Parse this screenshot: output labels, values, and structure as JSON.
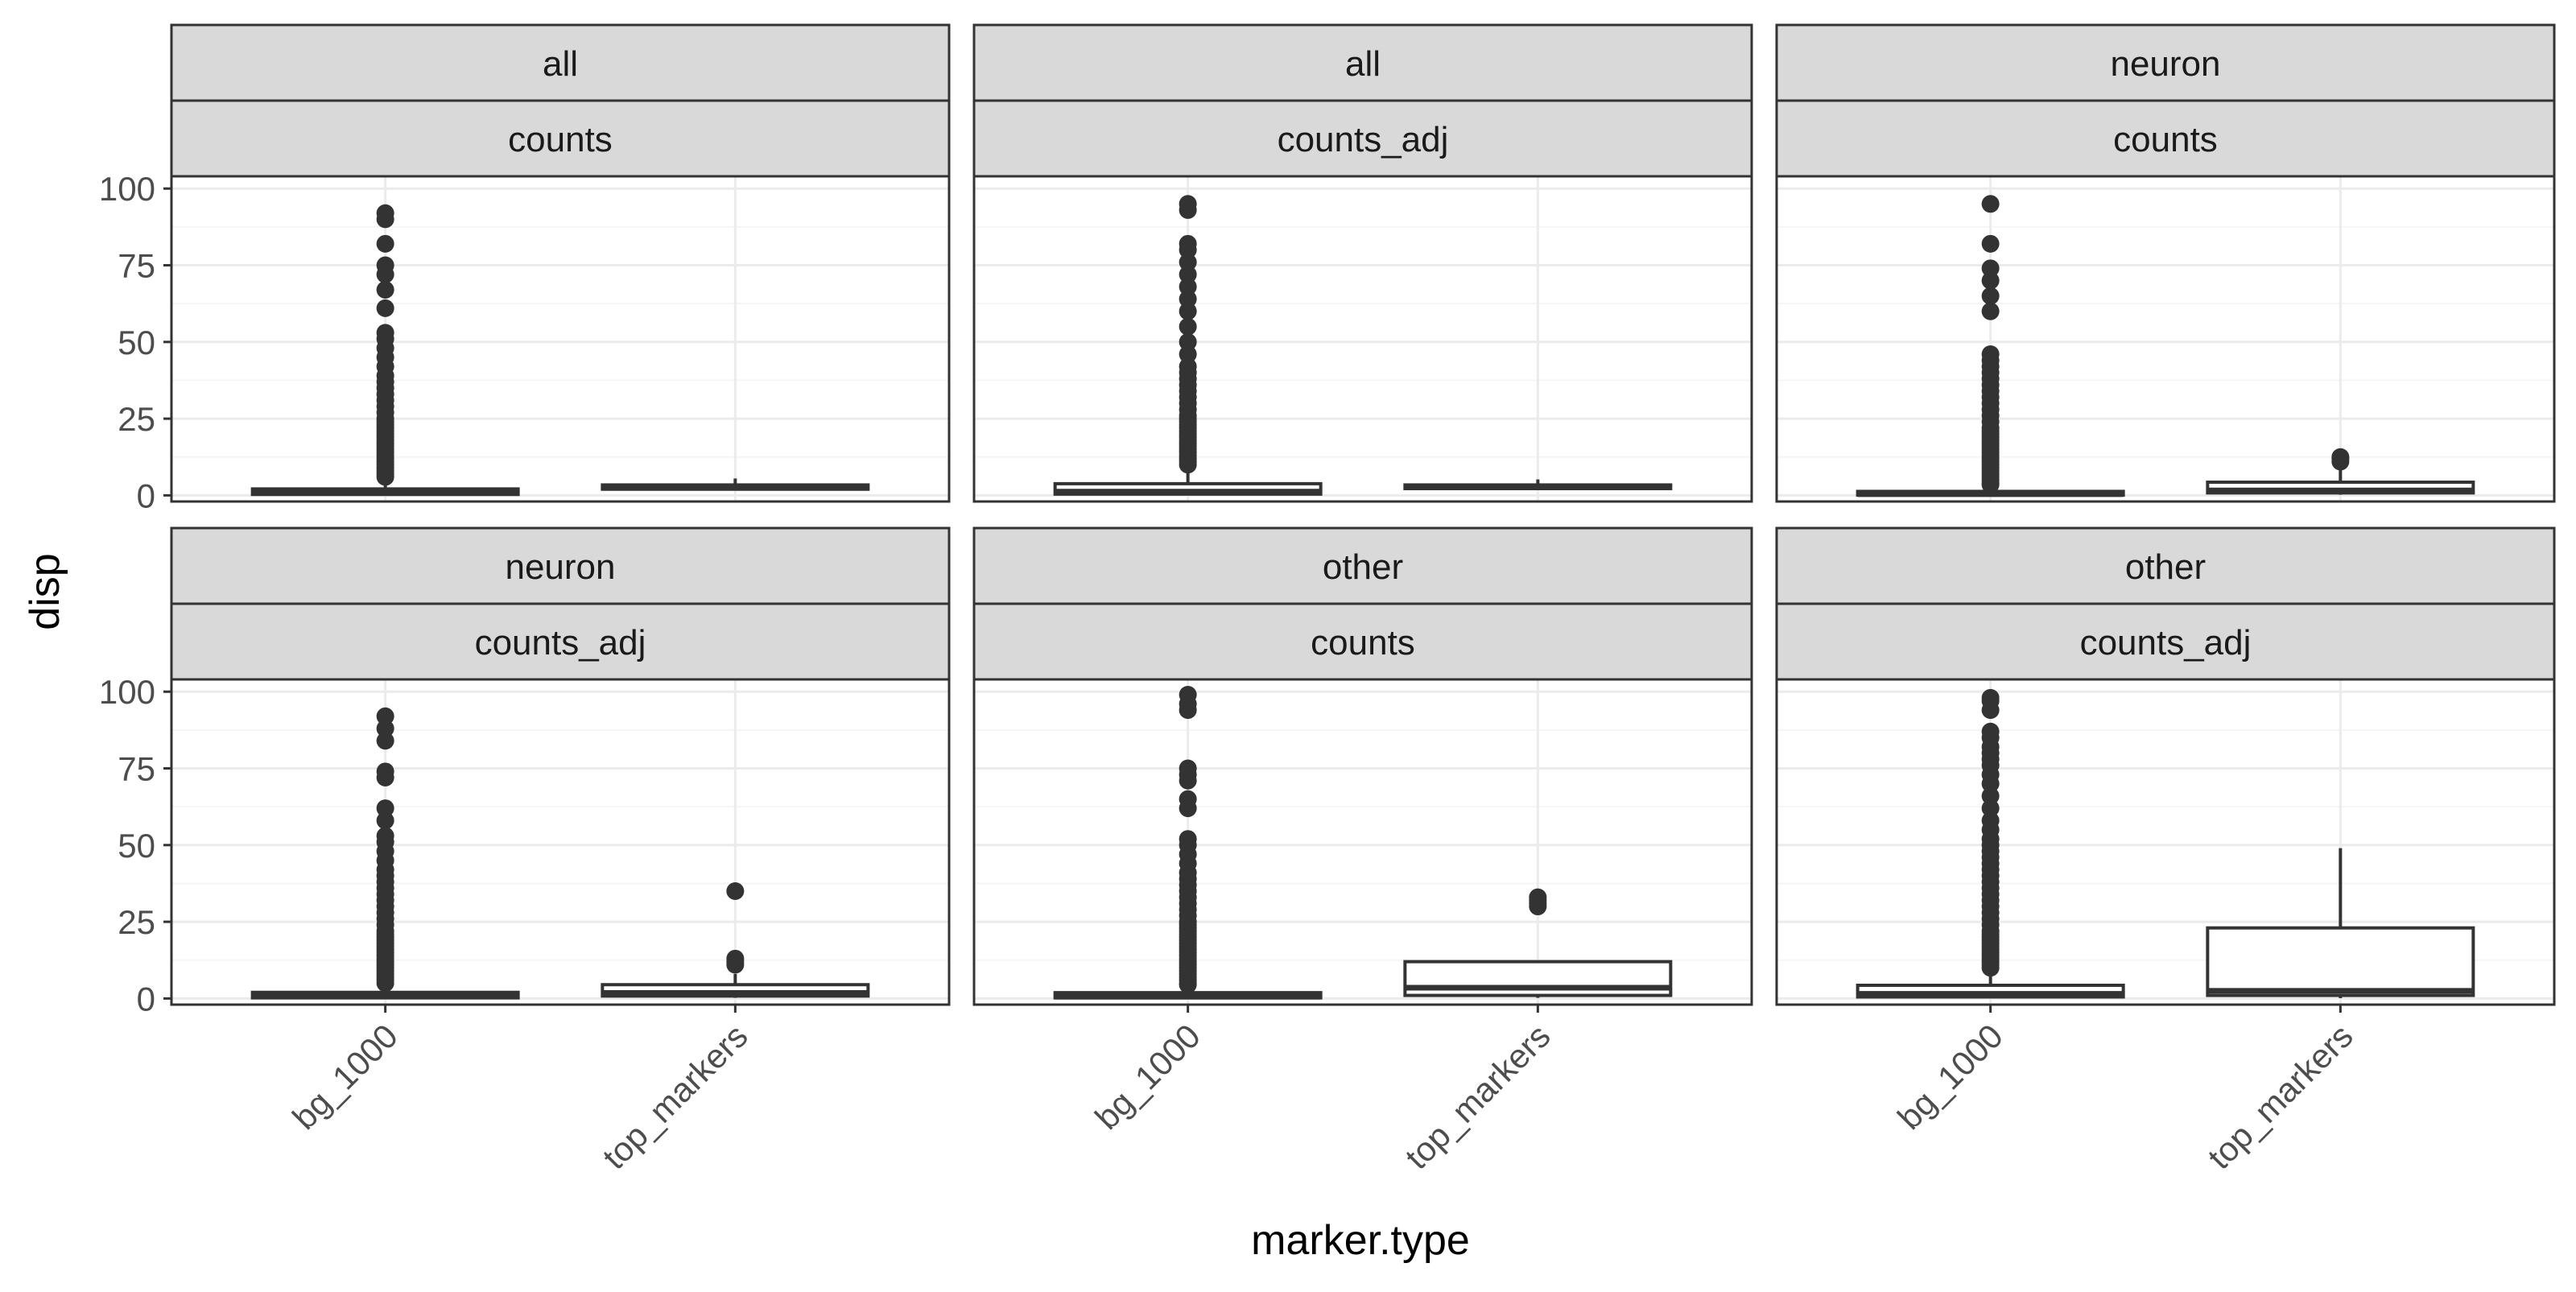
{
  "colors": {
    "panel_border": "#333333",
    "strip_fill": "#d9d9d9",
    "grid_major": "#ebebeb",
    "grid_minor": "#f5f5f5",
    "box_stroke": "#333333",
    "outlier": "#333333",
    "tick_label": "#4d4d4d",
    "axis_title": "#000000"
  },
  "chart_data": {
    "type": "boxplot",
    "facet_layout": {
      "rows": 2,
      "cols": 3
    },
    "xlabel": "marker.type",
    "ylabel": "disp",
    "categories": [
      "bg_1000",
      "top_markers"
    ],
    "ylim": [
      -2,
      104
    ],
    "y_ticks": [
      0,
      25,
      50,
      75,
      100
    ],
    "grid": true,
    "panels": [
      {
        "strip_top": "all",
        "strip_bottom": "counts",
        "boxes": [
          {
            "category": "bg_1000",
            "q1": 0.3,
            "median": 0.9,
            "q3": 2.1,
            "whisker_low": 0,
            "whisker_high": 5.0,
            "outliers": [
              6,
              7,
              8,
              9,
              10,
              11,
              12,
              13,
              14,
              15,
              16,
              17,
              18,
              19,
              20,
              21,
              22,
              23,
              24,
              25,
              27,
              29,
              31,
              33,
              35,
              37,
              39,
              42,
              45,
              48,
              51,
              53,
              61,
              67,
              72,
              75,
              82,
              90,
              92
            ]
          },
          {
            "category": "top_markers",
            "q1": 2.0,
            "median": 2.7,
            "q3": 3.4,
            "whisker_low": 1.6,
            "whisker_high": 5.5,
            "outliers": []
          }
        ]
      },
      {
        "strip_top": "all",
        "strip_bottom": "counts_adj",
        "boxes": [
          {
            "category": "bg_1000",
            "q1": 0.4,
            "median": 1.2,
            "q3": 3.8,
            "whisker_low": 0,
            "whisker_high": 9.0,
            "outliers": [
              10,
              11,
              12,
              13,
              14,
              15,
              16,
              17,
              18,
              19,
              20,
              21,
              22,
              23,
              24,
              25,
              26,
              28,
              30,
              32,
              34,
              36,
              38,
              40,
              42,
              46,
              50,
              55,
              60,
              64,
              68,
              72,
              76,
              80,
              82,
              93,
              95
            ]
          },
          {
            "category": "top_markers",
            "q1": 2.2,
            "median": 2.8,
            "q3": 3.4,
            "whisker_low": 1.8,
            "whisker_high": 5.2,
            "outliers": []
          }
        ]
      },
      {
        "strip_top": "neuron",
        "strip_bottom": "counts",
        "boxes": [
          {
            "category": "bg_1000",
            "q1": 0.1,
            "median": 0.4,
            "q3": 1.3,
            "whisker_low": 0,
            "whisker_high": 3.0,
            "outliers": [
              3.5,
              4,
              5,
              6,
              7,
              8,
              9,
              10,
              11,
              12,
              13,
              14,
              15,
              16,
              17,
              18,
              19,
              20,
              21,
              22,
              24,
              26,
              28,
              30,
              32,
              34,
              36,
              38,
              40,
              42,
              44,
              46,
              60,
              65,
              70,
              74,
              82,
              95
            ]
          },
          {
            "category": "top_markers",
            "q1": 0.8,
            "median": 1.6,
            "q3": 4.3,
            "whisker_low": 0.2,
            "whisker_high": 9.0,
            "outliers": [
              11,
              12,
              12.5
            ]
          }
        ]
      },
      {
        "strip_top": "neuron",
        "strip_bottom": "counts_adj",
        "boxes": [
          {
            "category": "bg_1000",
            "q1": 0.2,
            "median": 0.7,
            "q3": 2.0,
            "whisker_low": 0,
            "whisker_high": 4.5,
            "outliers": [
              5,
              6,
              7,
              8,
              9,
              10,
              11,
              12,
              13,
              14,
              15,
              16,
              17,
              18,
              19,
              20,
              21,
              22,
              24,
              26,
              28,
              30,
              32,
              34,
              36,
              38,
              40,
              42,
              45,
              48,
              51,
              53,
              58,
              62,
              72,
              74,
              84,
              88,
              92
            ]
          },
          {
            "category": "top_markers",
            "q1": 0.8,
            "median": 1.8,
            "q3": 4.5,
            "whisker_low": 0.2,
            "whisker_high": 8.0,
            "outliers": [
              11,
              12,
              13,
              35
            ]
          }
        ]
      },
      {
        "strip_top": "other",
        "strip_bottom": "counts",
        "boxes": [
          {
            "category": "bg_1000",
            "q1": 0.2,
            "median": 0.6,
            "q3": 1.9,
            "whisker_low": 0,
            "whisker_high": 4.0,
            "outliers": [
              4.5,
              5,
              6,
              7,
              8,
              9,
              10,
              11,
              12,
              13,
              14,
              15,
              16,
              17,
              18,
              19,
              20,
              21,
              22,
              23,
              24,
              25,
              27,
              29,
              31,
              33,
              35,
              37,
              39,
              41,
              44,
              47,
              50,
              52,
              62,
              65,
              71,
              73,
              75,
              94,
              96,
              99
            ]
          },
          {
            "category": "top_markers",
            "q1": 1.0,
            "median": 3.5,
            "q3": 12.0,
            "whisker_low": 0.2,
            "whisker_high": 12.0,
            "outliers": [
              30,
              31,
              32,
              33
            ]
          }
        ]
      },
      {
        "strip_top": "other",
        "strip_bottom": "counts_adj",
        "boxes": [
          {
            "category": "bg_1000",
            "q1": 0.5,
            "median": 1.5,
            "q3": 4.3,
            "whisker_low": 0,
            "whisker_high": 9.0,
            "outliers": [
              10,
              11,
              12,
              13,
              14,
              15,
              16,
              17,
              18,
              19,
              20,
              21,
              22,
              24,
              26,
              28,
              30,
              32,
              34,
              36,
              38,
              40,
              42,
              44,
              46,
              48,
              50,
              52,
              55,
              58,
              62,
              66,
              70,
              73,
              76,
              78,
              80,
              82,
              85,
              87,
              94,
              97,
              98
            ]
          },
          {
            "category": "top_markers",
            "q1": 1.0,
            "median": 2.5,
            "q3": 23.0,
            "whisker_low": 0.1,
            "whisker_high": 49.0,
            "outliers": []
          }
        ]
      }
    ]
  }
}
